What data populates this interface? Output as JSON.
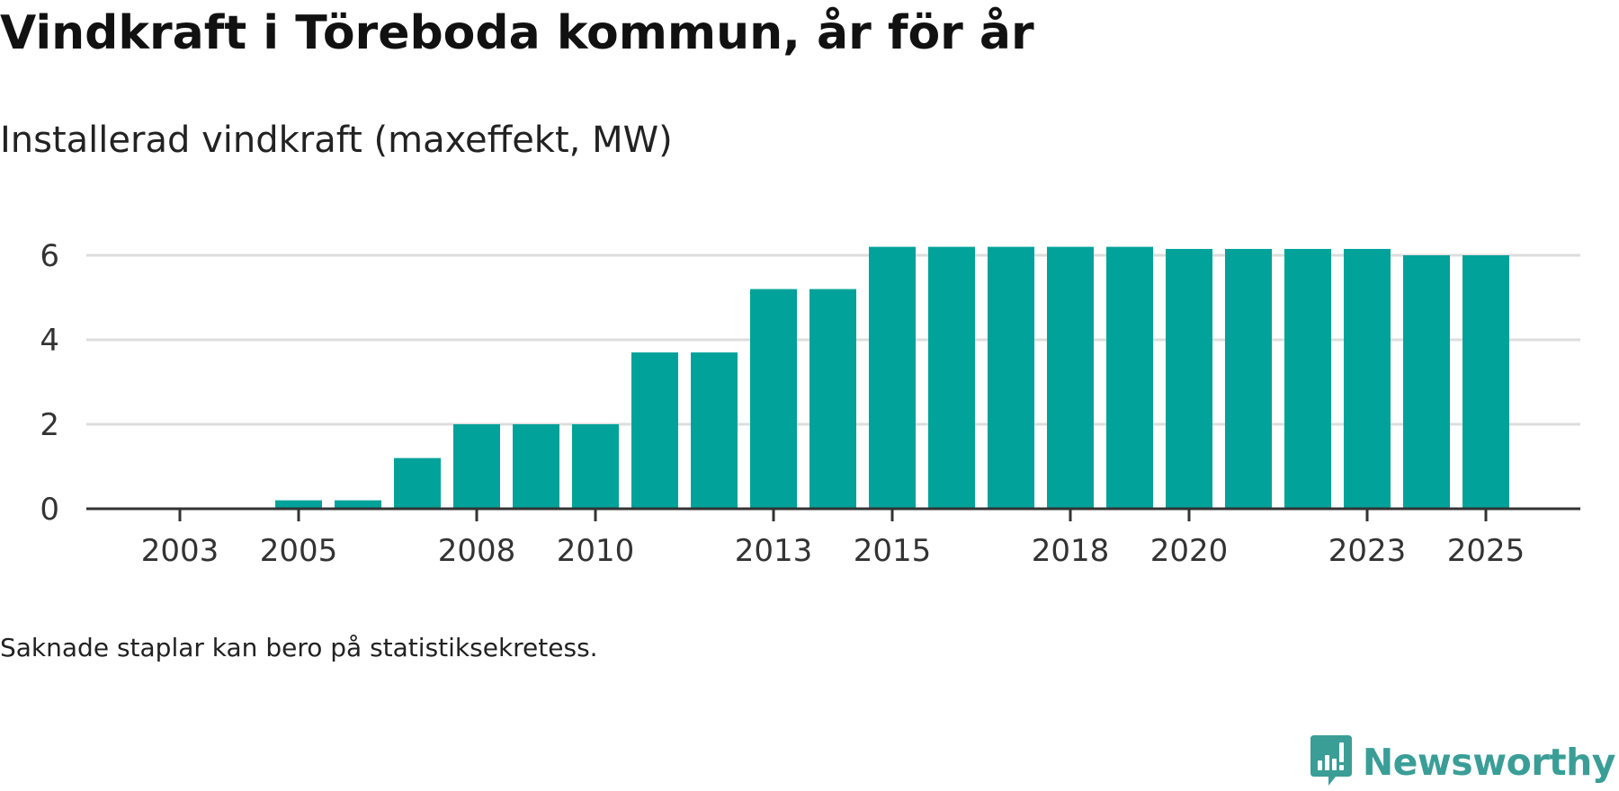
{
  "title": "Vindkraft i Töreboda kommun, år för år",
  "subtitle": "Installerad vindkraft (maxeffekt, MW)",
  "footnote": "Saknade staplar kan bero på statistiksekretess.",
  "brand": {
    "name": "Newsworthy",
    "icon": "newsworthy-logo-icon",
    "color": "#3a9e97"
  },
  "chart_data": {
    "type": "bar",
    "title": "Vindkraft i Töreboda kommun, år för år",
    "subtitle": "Installerad vindkraft (maxeffekt, MW)",
    "xlabel": "",
    "ylabel": "",
    "ylim": [
      0,
      6.5
    ],
    "yticks": [
      0,
      2,
      4,
      6
    ],
    "grid": true,
    "legend": "none",
    "bar_color": "#00a29a",
    "categories": [
      "2003",
      "2004",
      "2005",
      "2006",
      "2007",
      "2008",
      "2009",
      "2010",
      "2011",
      "2012",
      "2013",
      "2014",
      "2015",
      "2016",
      "2017",
      "2018",
      "2019",
      "2020",
      "2021",
      "2022",
      "2023",
      "2024",
      "2025"
    ],
    "values": [
      0,
      0,
      0.2,
      0.2,
      1.2,
      2.0,
      2.0,
      2.0,
      3.7,
      3.7,
      5.2,
      5.2,
      6.2,
      6.2,
      6.2,
      6.2,
      6.2,
      6.15,
      6.15,
      6.15,
      6.15,
      6.0,
      6.0
    ],
    "xtick_labels": [
      "2003",
      "2005",
      "2008",
      "2010",
      "2013",
      "2015",
      "2018",
      "2020",
      "2023",
      "2025"
    ]
  }
}
